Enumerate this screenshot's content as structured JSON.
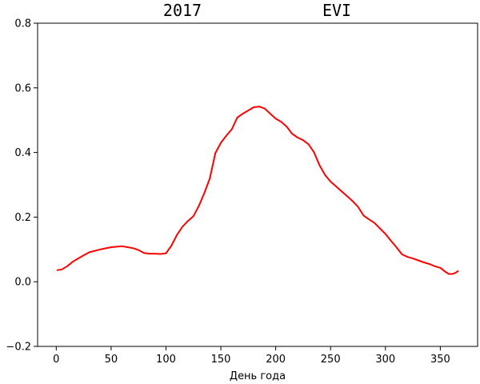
{
  "chart_data": {
    "type": "line",
    "title_left": "2017",
    "title_right": "EVI",
    "xlabel": "День года",
    "ylabel": "",
    "xlim": [
      -17,
      384
    ],
    "ylim": [
      -0.2,
      0.8
    ],
    "xticks": [
      0,
      50,
      100,
      150,
      200,
      250,
      300,
      350
    ],
    "yticks": [
      -0.2,
      0.0,
      0.2,
      0.4,
      0.6,
      0.8
    ],
    "xtick_labels": [
      "0",
      "50",
      "100",
      "150",
      "200",
      "250",
      "300",
      "350"
    ],
    "ytick_labels": [
      "−0.2",
      "0.0",
      "0.2",
      "0.4",
      "0.6",
      "0.8"
    ],
    "grid": false,
    "legend": "none",
    "series": [
      {
        "color": "#ff0000",
        "x": [
          1,
          5,
          10,
          15,
          20,
          25,
          30,
          40,
          50,
          60,
          65,
          70,
          75,
          80,
          85,
          90,
          95,
          100,
          105,
          110,
          115,
          120,
          125,
          130,
          135,
          140,
          145,
          150,
          155,
          160,
          165,
          170,
          175,
          180,
          185,
          190,
          195,
          200,
          205,
          210,
          215,
          220,
          225,
          230,
          235,
          240,
          245,
          250,
          255,
          260,
          265,
          270,
          275,
          280,
          285,
          290,
          295,
          300,
          305,
          310,
          315,
          320,
          325,
          330,
          335,
          340,
          345,
          350,
          355,
          358,
          361,
          364,
          366
        ],
        "y": [
          0.036,
          0.038,
          0.048,
          0.062,
          0.072,
          0.082,
          0.091,
          0.1,
          0.107,
          0.11,
          0.107,
          0.104,
          0.098,
          0.089,
          0.087,
          0.087,
          0.086,
          0.088,
          0.112,
          0.145,
          0.17,
          0.188,
          0.203,
          0.235,
          0.275,
          0.32,
          0.398,
          0.43,
          0.452,
          0.472,
          0.508,
          0.52,
          0.53,
          0.54,
          0.542,
          0.536,
          0.52,
          0.505,
          0.495,
          0.48,
          0.458,
          0.446,
          0.438,
          0.425,
          0.4,
          0.36,
          0.33,
          0.31,
          0.295,
          0.28,
          0.265,
          0.25,
          0.232,
          0.205,
          0.193,
          0.182,
          0.165,
          0.148,
          0.127,
          0.107,
          0.085,
          0.077,
          0.072,
          0.066,
          0.06,
          0.055,
          0.048,
          0.043,
          0.03,
          0.024,
          0.024,
          0.028,
          0.033
        ]
      }
    ]
  }
}
